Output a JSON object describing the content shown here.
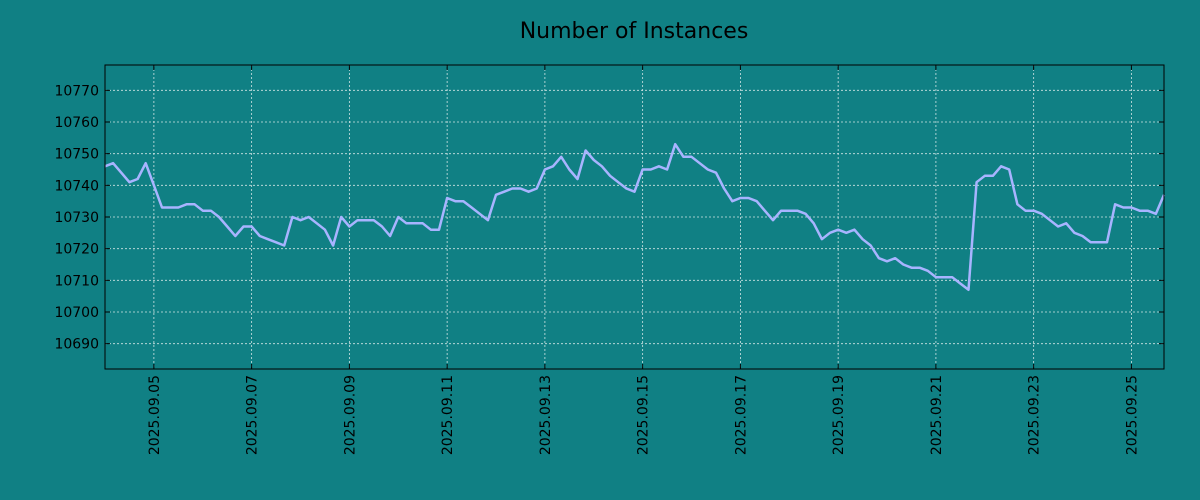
{
  "colors": {
    "background": "#108084",
    "line": "#a8b4ff",
    "grid": "#d0e4e4",
    "axis": "#000000"
  },
  "chart_data": {
    "type": "line",
    "title": "Number of Instances",
    "xlabel": "",
    "ylabel": "",
    "grid": true,
    "xlim": [
      "2025.09.04 00:00",
      "2025.09.25 16:00"
    ],
    "ylim": [
      10682,
      10778
    ],
    "y_ticks": [
      10690,
      10700,
      10710,
      10720,
      10730,
      10740,
      10750,
      10760,
      10770
    ],
    "y_tick_labels": [
      "10690",
      "10700",
      "10710",
      "10720",
      "10730",
      "10740",
      "10750",
      "10760",
      "10770"
    ],
    "x_ticks": [
      "2025.09.05",
      "2025.09.07",
      "2025.09.09",
      "2025.09.11",
      "2025.09.13",
      "2025.09.15",
      "2025.09.17",
      "2025.09.19",
      "2025.09.21",
      "2025.09.23",
      "2025.09.25"
    ],
    "series": [
      {
        "x": [
          "2025.09.04 00:00",
          "2025.09.04 04:00",
          "2025.09.04 08:00",
          "2025.09.04 12:00",
          "2025.09.04 16:00",
          "2025.09.04 20:00",
          "2025.09.05 00:00",
          "2025.09.05 04:00",
          "2025.09.05 08:00",
          "2025.09.05 12:00",
          "2025.09.05 16:00",
          "2025.09.05 20:00",
          "2025.09.06 00:00",
          "2025.09.06 04:00",
          "2025.09.06 08:00",
          "2025.09.06 12:00",
          "2025.09.06 16:00",
          "2025.09.06 20:00",
          "2025.09.07 00:00",
          "2025.09.07 04:00",
          "2025.09.07 08:00",
          "2025.09.07 12:00",
          "2025.09.07 16:00",
          "2025.09.07 20:00",
          "2025.09.08 00:00",
          "2025.09.08 04:00",
          "2025.09.08 08:00",
          "2025.09.08 12:00",
          "2025.09.08 16:00",
          "2025.09.08 20:00",
          "2025.09.09 00:00",
          "2025.09.09 04:00",
          "2025.09.09 08:00",
          "2025.09.09 12:00",
          "2025.09.09 16:00",
          "2025.09.09 20:00",
          "2025.09.10 00:00",
          "2025.09.10 04:00",
          "2025.09.10 08:00",
          "2025.09.10 12:00",
          "2025.09.10 16:00",
          "2025.09.10 20:00",
          "2025.09.11 00:00",
          "2025.09.11 04:00",
          "2025.09.11 08:00",
          "2025.09.11 12:00",
          "2025.09.11 16:00",
          "2025.09.11 20:00",
          "2025.09.12 00:00",
          "2025.09.12 04:00",
          "2025.09.12 08:00",
          "2025.09.12 12:00",
          "2025.09.12 16:00",
          "2025.09.12 20:00",
          "2025.09.13 00:00",
          "2025.09.13 04:00",
          "2025.09.13 08:00",
          "2025.09.13 12:00",
          "2025.09.13 16:00",
          "2025.09.13 20:00",
          "2025.09.14 00:00",
          "2025.09.14 04:00",
          "2025.09.14 08:00",
          "2025.09.14 12:00",
          "2025.09.14 16:00",
          "2025.09.14 20:00",
          "2025.09.15 00:00",
          "2025.09.15 04:00",
          "2025.09.15 08:00",
          "2025.09.15 12:00",
          "2025.09.15 16:00",
          "2025.09.15 20:00",
          "2025.09.16 00:00",
          "2025.09.16 04:00",
          "2025.09.16 08:00",
          "2025.09.16 12:00",
          "2025.09.16 16:00",
          "2025.09.16 20:00",
          "2025.09.17 00:00",
          "2025.09.17 04:00",
          "2025.09.17 08:00",
          "2025.09.17 12:00",
          "2025.09.17 16:00",
          "2025.09.17 20:00",
          "2025.09.18 00:00",
          "2025.09.18 04:00",
          "2025.09.18 08:00",
          "2025.09.18 12:00",
          "2025.09.18 16:00",
          "2025.09.18 20:00",
          "2025.09.19 00:00",
          "2025.09.19 04:00",
          "2025.09.19 08:00",
          "2025.09.19 12:00",
          "2025.09.19 16:00",
          "2025.09.19 20:00",
          "2025.09.20 00:00",
          "2025.09.20 04:00",
          "2025.09.20 08:00",
          "2025.09.20 12:00",
          "2025.09.20 16:00",
          "2025.09.20 20:00",
          "2025.09.21 00:00",
          "2025.09.21 04:00",
          "2025.09.21 08:00",
          "2025.09.21 12:00",
          "2025.09.21 16:00",
          "2025.09.21 20:00",
          "2025.09.22 00:00",
          "2025.09.22 04:00",
          "2025.09.22 08:00",
          "2025.09.22 12:00",
          "2025.09.22 16:00",
          "2025.09.22 20:00",
          "2025.09.23 00:00",
          "2025.09.23 04:00",
          "2025.09.23 08:00",
          "2025.09.23 12:00",
          "2025.09.23 16:00",
          "2025.09.23 20:00",
          "2025.09.24 00:00",
          "2025.09.24 04:00",
          "2025.09.24 08:00",
          "2025.09.24 12:00",
          "2025.09.24 16:00",
          "2025.09.24 20:00",
          "2025.09.25 00:00",
          "2025.09.25 04:00",
          "2025.09.25 08:00",
          "2025.09.25 12:00",
          "2025.09.25 16:00"
        ],
        "values": [
          10746,
          10747,
          10744,
          10741,
          10742,
          10747,
          10740,
          10733,
          10733,
          10733,
          10734,
          10734,
          10732,
          10732,
          10730,
          10727,
          10724,
          10727,
          10727,
          10724,
          10723,
          10722,
          10721,
          10730,
          10729,
          10730,
          10728,
          10726,
          10721,
          10730,
          10727,
          10729,
          10729,
          10729,
          10727,
          10724,
          10730,
          10728,
          10728,
          10728,
          10726,
          10726,
          10736,
          10735,
          10735,
          10733,
          10731,
          10729,
          10737,
          10738,
          10739,
          10739,
          10738,
          10739,
          10745,
          10746,
          10749,
          10745,
          10742,
          10751,
          10748,
          10746,
          10743,
          10741,
          10739,
          10738,
          10745,
          10745,
          10746,
          10745,
          10753,
          10749,
          10749,
          10747,
          10745,
          10744,
          10739,
          10735,
          10736,
          10736,
          10735,
          10732,
          10729,
          10732,
          10732,
          10732,
          10731,
          10728,
          10723,
          10725,
          10726,
          10725,
          10726,
          10723,
          10721,
          10717,
          10716,
          10717,
          10715,
          10714,
          10714,
          10713,
          10711,
          10711,
          10711,
          10709,
          10707,
          10741,
          10743,
          10743,
          10746,
          10745,
          10734,
          10732,
          10732,
          10731,
          10729,
          10727,
          10728,
          10725,
          10724,
          10722,
          10722,
          10722,
          10734,
          10733,
          10733,
          10732,
          10732,
          10731,
          10737
        ]
      }
    ]
  }
}
